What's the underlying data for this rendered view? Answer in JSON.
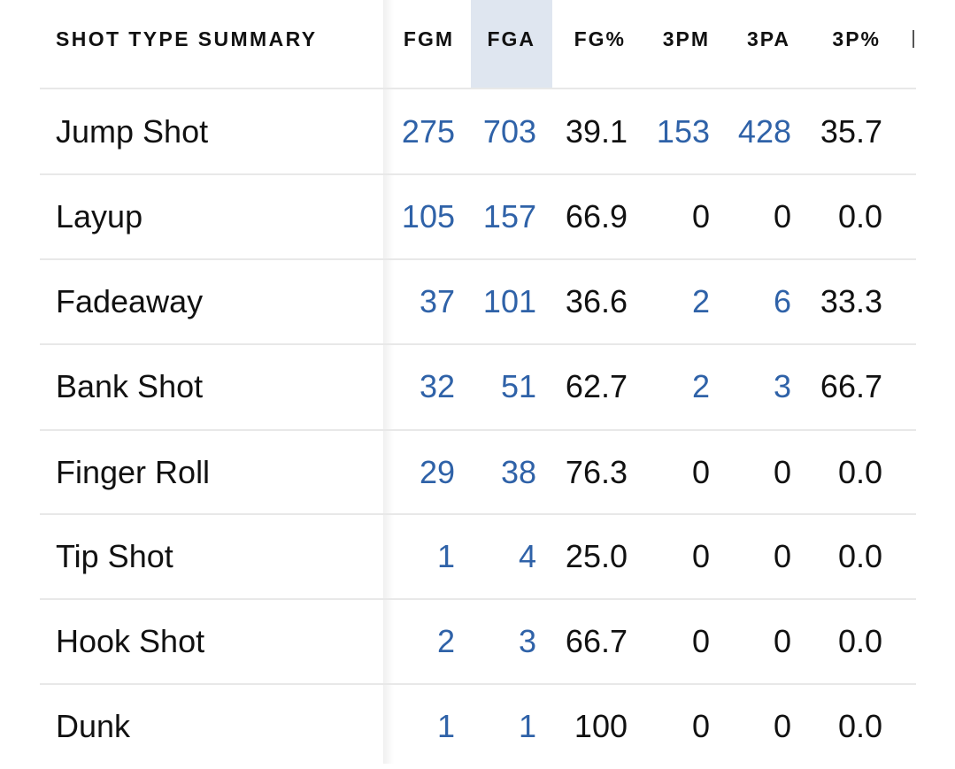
{
  "table": {
    "title": "SHOT TYPE SUMMARY",
    "headers": [
      "FGM",
      "FGA",
      "FG%",
      "3PM",
      "3PA",
      "3P%"
    ],
    "rows": [
      {
        "shot_type": "Jump Shot",
        "fgm": "275",
        "fga": "703",
        "fg_pct": "39.1",
        "three_pm": "153",
        "three_pa": "428",
        "three_pct": "35.7"
      },
      {
        "shot_type": "Layup",
        "fgm": "105",
        "fga": "157",
        "fg_pct": "66.9",
        "three_pm": "0",
        "three_pa": "0",
        "three_pct": "0.0"
      },
      {
        "shot_type": "Fadeaway",
        "fgm": "37",
        "fga": "101",
        "fg_pct": "36.6",
        "three_pm": "2",
        "three_pa": "6",
        "three_pct": "33.3"
      },
      {
        "shot_type": "Bank Shot",
        "fgm": "32",
        "fga": "51",
        "fg_pct": "62.7",
        "three_pm": "2",
        "three_pa": "3",
        "three_pct": "66.7"
      },
      {
        "shot_type": "Finger Roll",
        "fgm": "29",
        "fga": "38",
        "fg_pct": "76.3",
        "three_pm": "0",
        "three_pa": "0",
        "three_pct": "0.0"
      },
      {
        "shot_type": "Tip Shot",
        "fgm": "1",
        "fga": "4",
        "fg_pct": "25.0",
        "three_pm": "0",
        "three_pa": "0",
        "three_pct": "0.0"
      },
      {
        "shot_type": "Hook Shot",
        "fgm": "2",
        "fga": "3",
        "fg_pct": "66.7",
        "three_pm": "0",
        "three_pa": "0",
        "three_pct": "0.0"
      },
      {
        "shot_type": "Dunk",
        "fgm": "1",
        "fga": "1",
        "fg_pct": "100",
        "three_pm": "0",
        "three_pa": "0",
        "three_pct": "0.0"
      }
    ]
  },
  "colors": {
    "text": "#111111",
    "link": "#2f62a8",
    "sorted_column_bg": "#dfe6f0",
    "divider": "#e8e8e8"
  },
  "sorted_column": "FGA"
}
